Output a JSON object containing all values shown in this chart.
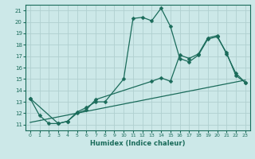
{
  "xlabel": "Humidex (Indice chaleur)",
  "background_color": "#cce8e8",
  "grid_color": "#b0d0d0",
  "line_color": "#1a6b5a",
  "xlim": [
    -0.5,
    23.5
  ],
  "ylim": [
    10.5,
    21.5
  ],
  "yticks": [
    11,
    12,
    13,
    14,
    15,
    16,
    17,
    18,
    19,
    20,
    21
  ],
  "xticks": [
    0,
    1,
    2,
    3,
    4,
    5,
    6,
    7,
    8,
    9,
    10,
    11,
    12,
    13,
    14,
    15,
    16,
    17,
    18,
    19,
    20,
    21,
    22,
    23
  ],
  "line1_x": [
    0,
    1,
    2,
    3,
    4,
    5,
    6,
    7,
    8,
    10,
    11,
    12,
    13,
    14,
    15,
    16,
    17,
    18,
    19,
    20,
    21,
    22,
    23
  ],
  "line1_y": [
    13.3,
    11.8,
    11.1,
    11.1,
    11.3,
    12.1,
    12.5,
    13.0,
    13.0,
    15.0,
    20.3,
    20.4,
    20.1,
    21.2,
    19.6,
    16.8,
    16.5,
    17.1,
    18.5,
    18.7,
    17.3,
    15.3,
    14.7
  ],
  "line2_x": [
    0,
    3,
    4,
    5,
    6,
    7,
    13,
    14,
    15,
    16,
    17,
    18,
    19,
    20,
    21,
    22,
    23
  ],
  "line2_y": [
    13.3,
    11.1,
    11.3,
    12.0,
    12.3,
    13.2,
    14.8,
    15.1,
    14.8,
    17.1,
    16.8,
    17.2,
    18.6,
    18.8,
    17.2,
    15.5,
    14.7
  ],
  "line3_x": [
    0,
    23
  ],
  "line3_y": [
    11.2,
    14.9
  ]
}
